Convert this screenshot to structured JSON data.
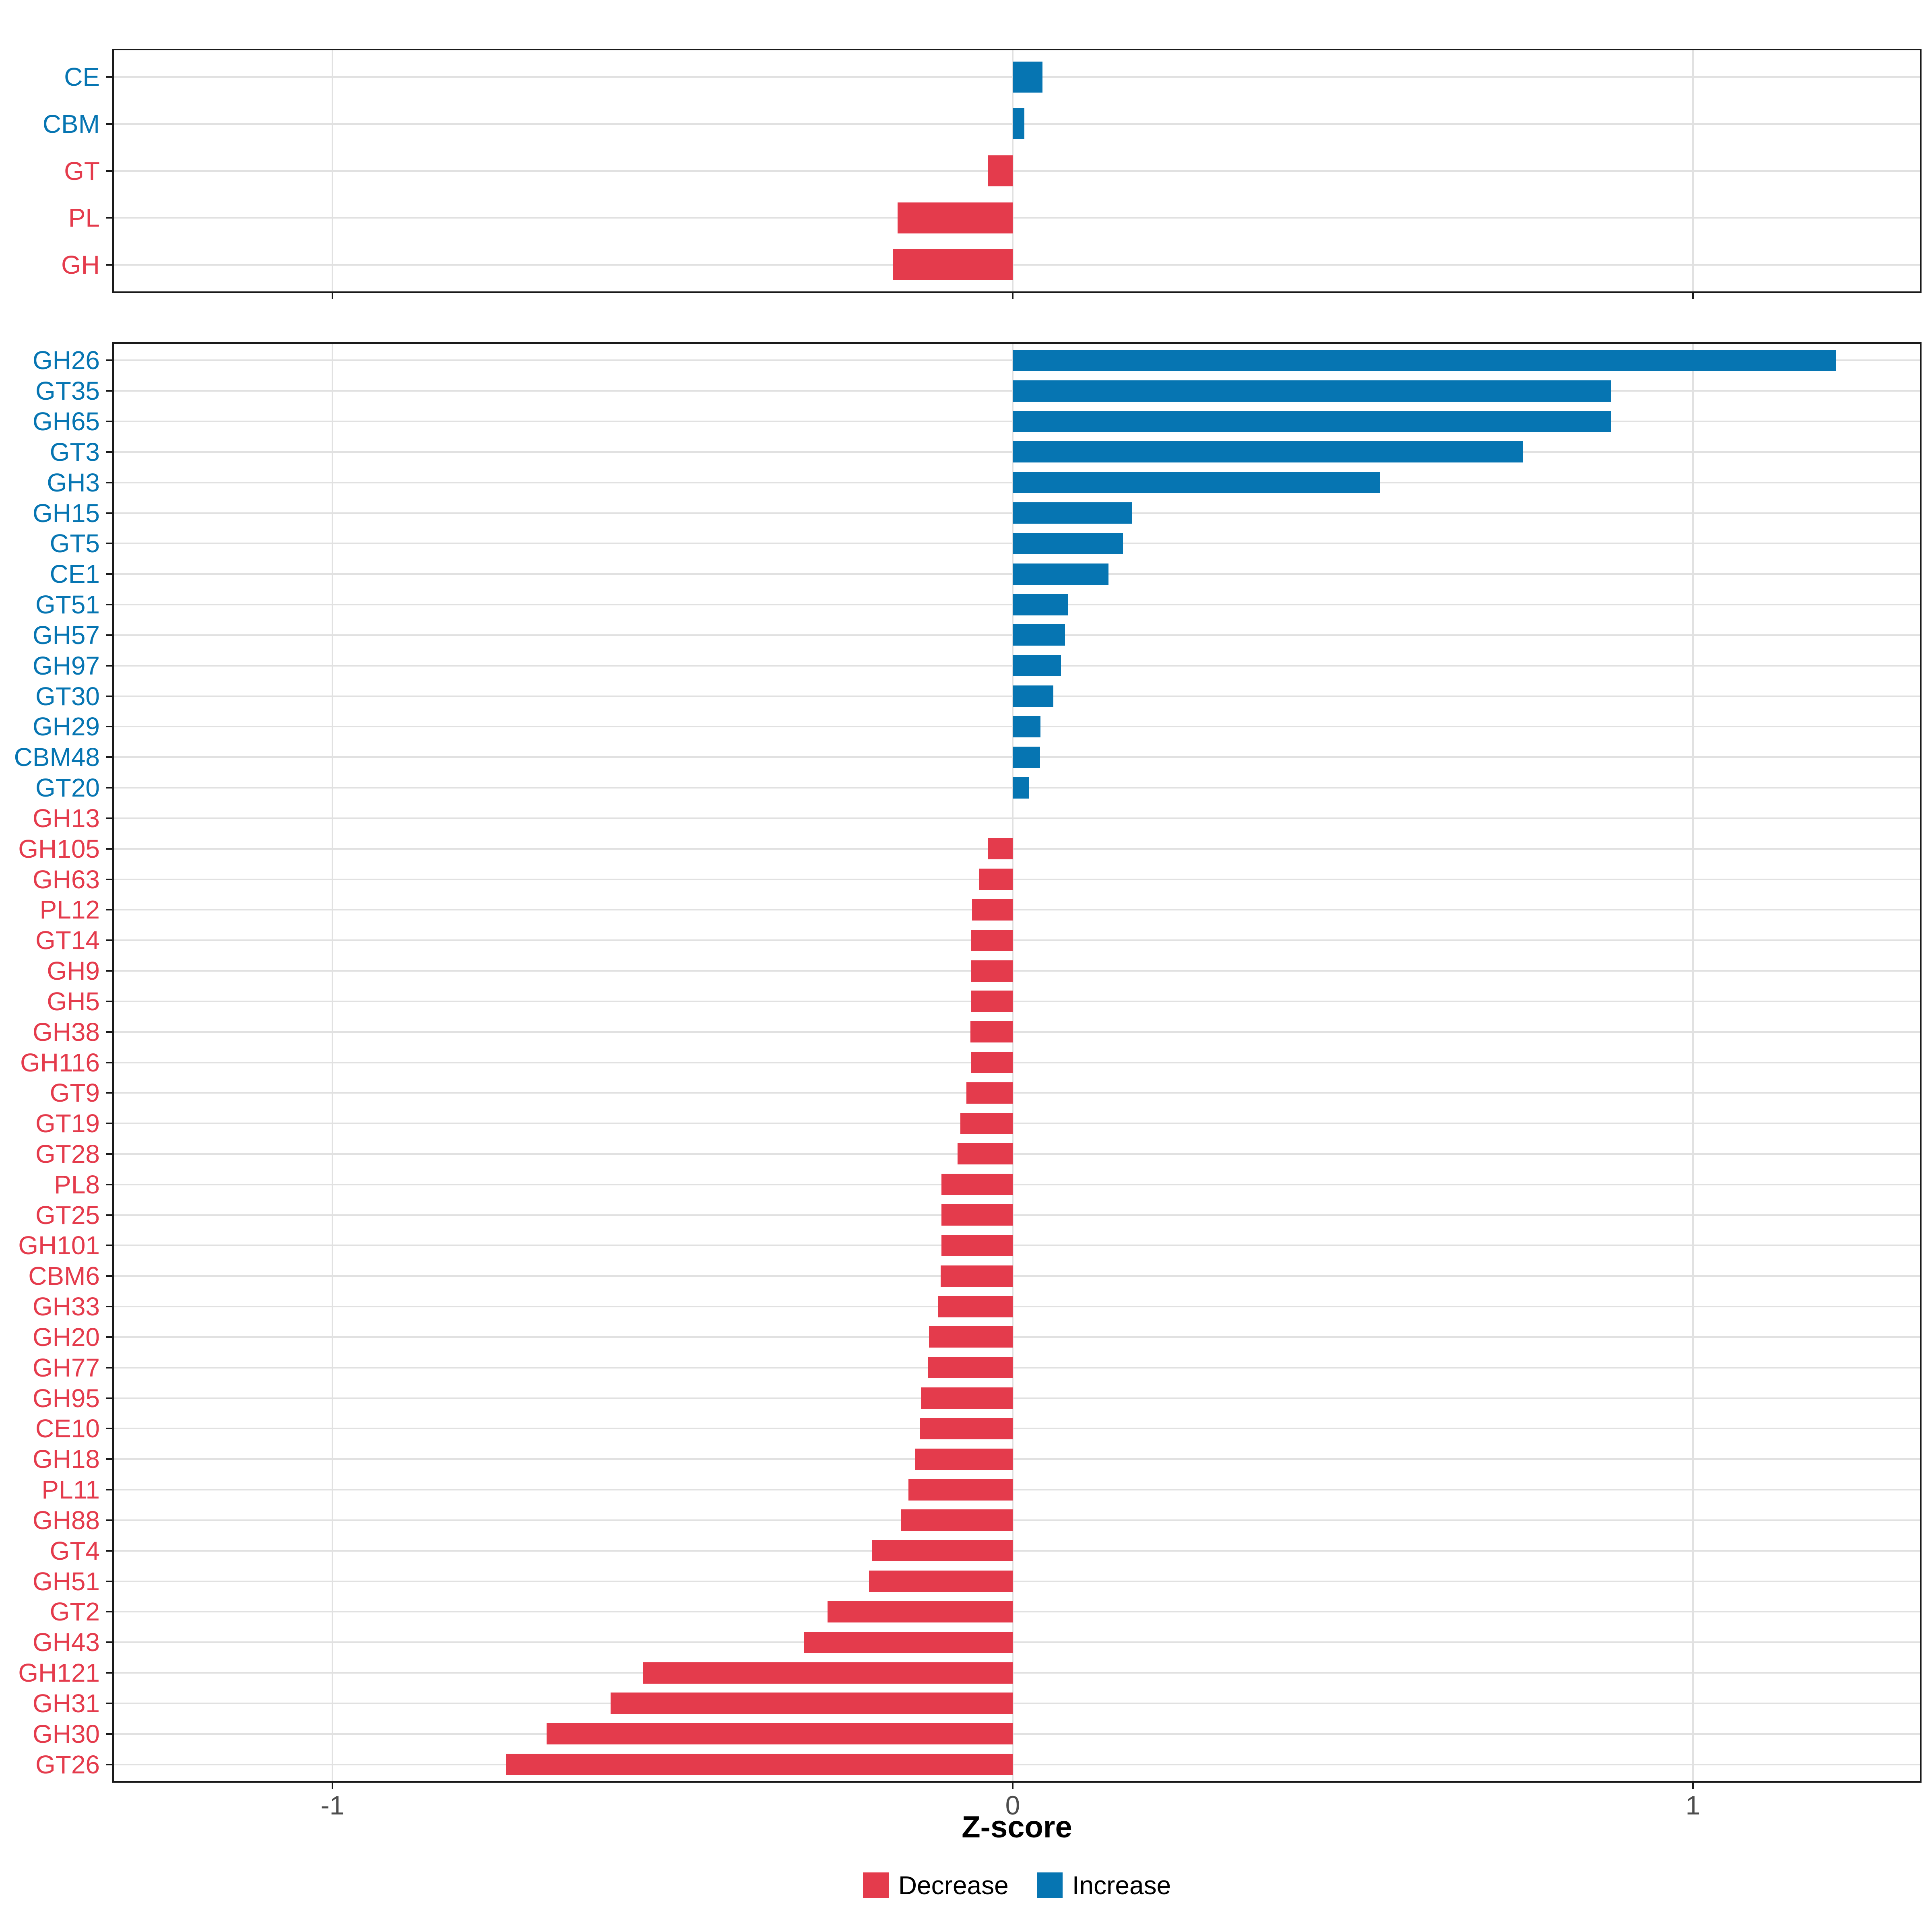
{
  "figure": {
    "xlabel": "Z-score",
    "x_axis": {
      "tick_values": [
        -1,
        0,
        1
      ],
      "tick_labels": [
        "-1",
        "0",
        "1"
      ],
      "xlim": [
        -1.32,
        1.34
      ],
      "grid": "major vertical at -1, 0, 1; horizontal at each category"
    },
    "legend": {
      "position": "bottom-center",
      "items": [
        {
          "label": "Decrease",
          "color": "#e43b4c"
        },
        {
          "label": "Increase",
          "color": "#0675b2"
        }
      ]
    },
    "colors": {
      "decrease": "#e43b4c",
      "increase": "#0675b2",
      "gridline": "#e1e1e1",
      "panel_border": "#1a1a1a",
      "tick_label": "#4d4d4d"
    }
  },
  "chart_data": [
    {
      "type": "bar",
      "orientation": "horizontal",
      "panel": "cazyme-classes",
      "title": "",
      "categories": [
        "CE",
        "CBM",
        "GT",
        "PL",
        "GH"
      ],
      "values": [
        0.044,
        0.017,
        -0.036,
        -0.169,
        -0.176
      ],
      "directions": [
        "Increase",
        "Increase",
        "Decrease",
        "Decrease",
        "Decrease"
      ]
    },
    {
      "type": "bar",
      "orientation": "horizontal",
      "panel": "cazyme-families",
      "title": "",
      "categories": [
        "GH26",
        "GT35",
        "GH65",
        "GT3",
        "GH3",
        "GH15",
        "GT5",
        "CE1",
        "GT51",
        "GH57",
        "GH97",
        "GT30",
        "GH29",
        "CBM48",
        "GT20",
        "GH13",
        "GH105",
        "GH63",
        "PL12",
        "GT14",
        "GH9",
        "GH5",
        "GH38",
        "GH116",
        "GT9",
        "GT19",
        "GT28",
        "PL8",
        "GT25",
        "GH101",
        "CBM6",
        "GH33",
        "GH20",
        "GH77",
        "GH95",
        "CE10",
        "GH18",
        "PL11",
        "GH88",
        "GT4",
        "GH51",
        "GT2",
        "GH43",
        "GH121",
        "GH31",
        "GH30",
        "GT26"
      ],
      "values": [
        1.21,
        0.88,
        0.88,
        0.75,
        0.54,
        0.176,
        0.162,
        0.141,
        0.081,
        0.077,
        0.071,
        0.06,
        0.041,
        0.04,
        0.024,
        0.0,
        -0.036,
        -0.05,
        -0.06,
        -0.061,
        -0.061,
        -0.061,
        -0.062,
        -0.061,
        -0.068,
        -0.077,
        -0.081,
        -0.105,
        -0.105,
        -0.105,
        -0.106,
        -0.11,
        -0.123,
        -0.124,
        -0.135,
        -0.136,
        -0.143,
        -0.153,
        -0.164,
        -0.207,
        -0.211,
        -0.272,
        -0.307,
        -0.543,
        -0.591,
        -0.685,
        -0.745
      ],
      "directions": [
        "Increase",
        "Increase",
        "Increase",
        "Increase",
        "Increase",
        "Increase",
        "Increase",
        "Increase",
        "Increase",
        "Increase",
        "Increase",
        "Increase",
        "Increase",
        "Increase",
        "Increase",
        "Decrease",
        "Decrease",
        "Decrease",
        "Decrease",
        "Decrease",
        "Decrease",
        "Decrease",
        "Decrease",
        "Decrease",
        "Decrease",
        "Decrease",
        "Decrease",
        "Decrease",
        "Decrease",
        "Decrease",
        "Decrease",
        "Decrease",
        "Decrease",
        "Decrease",
        "Decrease",
        "Decrease",
        "Decrease",
        "Decrease",
        "Decrease",
        "Decrease",
        "Decrease",
        "Decrease",
        "Decrease",
        "Decrease",
        "Decrease",
        "Decrease",
        "Decrease"
      ]
    }
  ]
}
